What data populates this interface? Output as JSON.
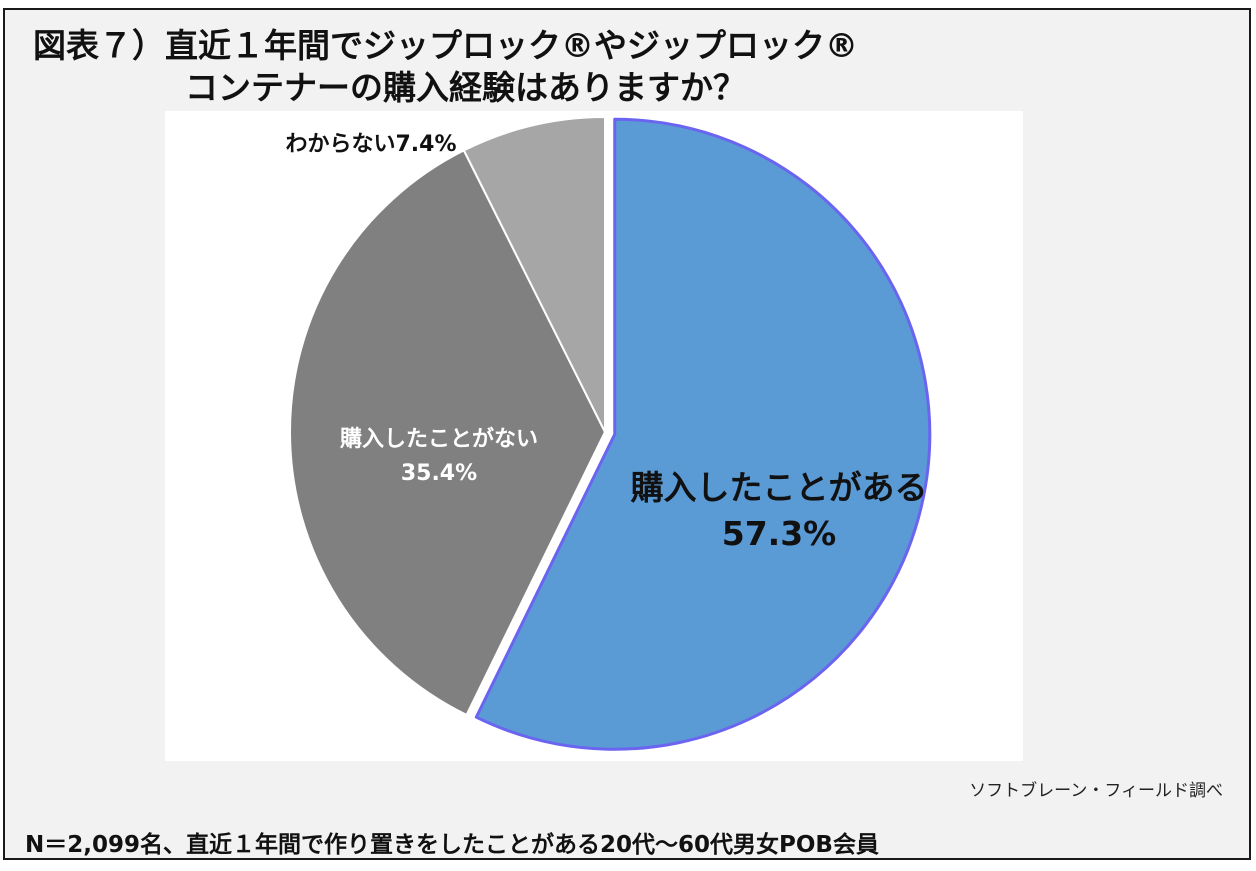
{
  "title": {
    "line1": "図表７）直近１年間でジップロック®やジップロック®",
    "line2": "コンテナーの購入経験はありますか？"
  },
  "source": "ソフトブレーン・フィールド調べ",
  "note": "N＝2,099名、直近１年間で作り置きをしたことがある20代～60代男女POB会員",
  "chart_data": {
    "type": "pie",
    "slices": [
      {
        "label": "購入したことがある",
        "value": 57.3,
        "value_label": "57.3%",
        "color": "#5b9bd5",
        "edge": "#6a64f0",
        "text_color": "#111111"
      },
      {
        "label": "購入したことがない",
        "value": 35.4,
        "value_label": "35.4%",
        "color": "#808080",
        "edge": "#ffffff",
        "text_color": "#ffffff"
      },
      {
        "label": "わからない",
        "value": 7.4,
        "value_label": "7.4%",
        "color": "#a6a6a6",
        "edge": "#ffffff",
        "text_color": "#111111"
      }
    ]
  }
}
